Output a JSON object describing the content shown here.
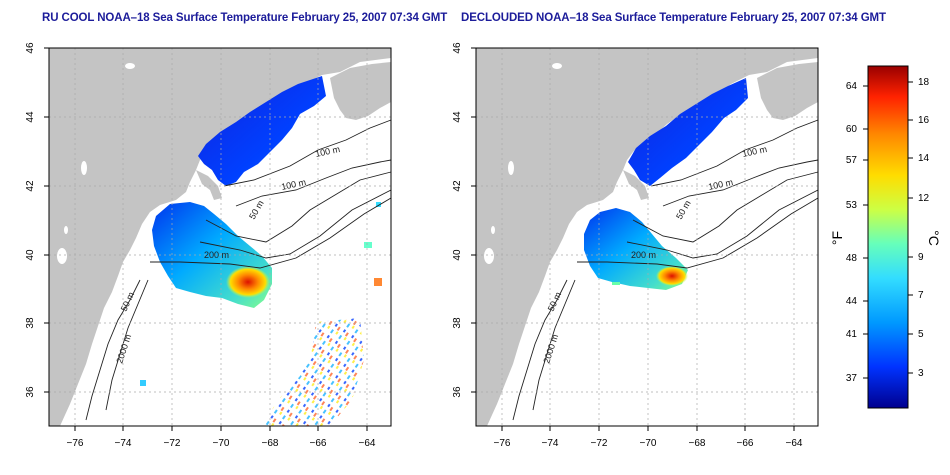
{
  "panels": [
    {
      "title": "RU COOL NOAA–18 Sea Surface Temperature February 25, 2007 07:34 GMT",
      "depth_labels": [
        "100 m",
        "100 m",
        "50 m",
        "200 m",
        "50 m",
        "2000 m"
      ]
    },
    {
      "title": "DECLOUDED NOAA–18 Sea Surface Temperature February 25, 2007 07:34 GMT",
      "depth_labels": [
        "100 m",
        "100 m",
        "50 m",
        "200 m",
        "50 m",
        "2000 m"
      ]
    }
  ],
  "axes": {
    "x_ticks": [
      "−76",
      "−74",
      "−72",
      "−70",
      "−68",
      "−66",
      "−64"
    ],
    "y_ticks": [
      "36",
      "38",
      "40",
      "42",
      "44",
      "46"
    ]
  },
  "colorbar": {
    "f_label": "°F",
    "c_label": "°C",
    "f_ticks": [
      "64",
      "60",
      "57",
      "53",
      "48",
      "44",
      "41",
      "37"
    ],
    "c_ticks": [
      "18",
      "16",
      "14",
      "12",
      "9",
      "7",
      "5",
      "3"
    ]
  },
  "colors": {
    "land": "#c4c4c4",
    "ocean": "#ffffff",
    "title": "#1c1c9a",
    "colorbar_stops": [
      "#00008f",
      "#0033ff",
      "#0099ff",
      "#33ddff",
      "#66ffbb",
      "#ccff44",
      "#ffdd00",
      "#ff8800",
      "#ff2200",
      "#990000"
    ]
  }
}
